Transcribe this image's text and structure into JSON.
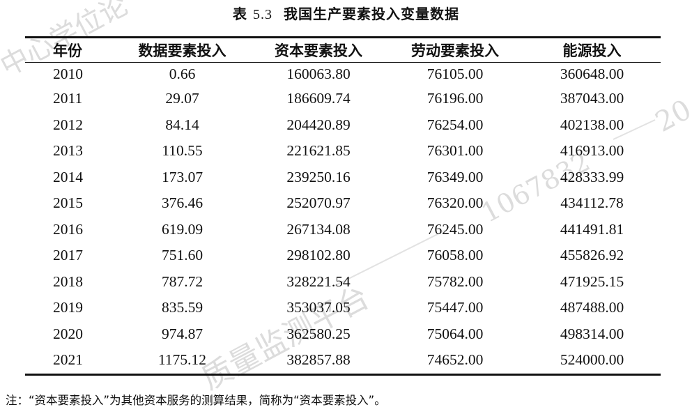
{
  "caption": {
    "label": "表",
    "number": "5.3",
    "title": "我国生产要素投入变量数据"
  },
  "table": {
    "headers": [
      "年份",
      "数据要素投入",
      "资本要素投入",
      "劳动要素投入",
      "能源投入"
    ],
    "rows": [
      [
        "2010",
        "0.66",
        "160063.80",
        "76105.00",
        "360648.00"
      ],
      [
        "2011",
        "29.07",
        "186609.74",
        "76196.00",
        "387043.00"
      ],
      [
        "2012",
        "84.14",
        "204420.89",
        "76254.00",
        "402138.00"
      ],
      [
        "2013",
        "110.55",
        "221621.85",
        "76301.00",
        "416913.00"
      ],
      [
        "2014",
        "173.07",
        "239250.16",
        "76349.00",
        "428333.99"
      ],
      [
        "2015",
        "376.46",
        "252070.97",
        "76320.00",
        "434112.78"
      ],
      [
        "2016",
        "619.09",
        "267134.08",
        "76245.00",
        "441491.81"
      ],
      [
        "2017",
        "751.60",
        "298102.80",
        "76058.00",
        "455826.92"
      ],
      [
        "2018",
        "787.72",
        "328221.54",
        "75782.00",
        "471925.15"
      ],
      [
        "2019",
        "835.59",
        "353037.05",
        "75447.00",
        "487488.00"
      ],
      [
        "2020",
        "974.87",
        "362580.25",
        "75064.00",
        "498314.00"
      ],
      [
        "2021",
        "1175.12",
        "382857.88",
        "74652.00",
        "524000.00"
      ]
    ]
  },
  "note": "注：“资本要素投入”为其他资本服务的测算结果，简称为“资本要素投入”。",
  "watermark": {
    "top_left": "中心学位论",
    "right_line": "1067832",
    "bottom": "质量监测平台",
    "edge": "20",
    "color": "#d9d9d9"
  }
}
